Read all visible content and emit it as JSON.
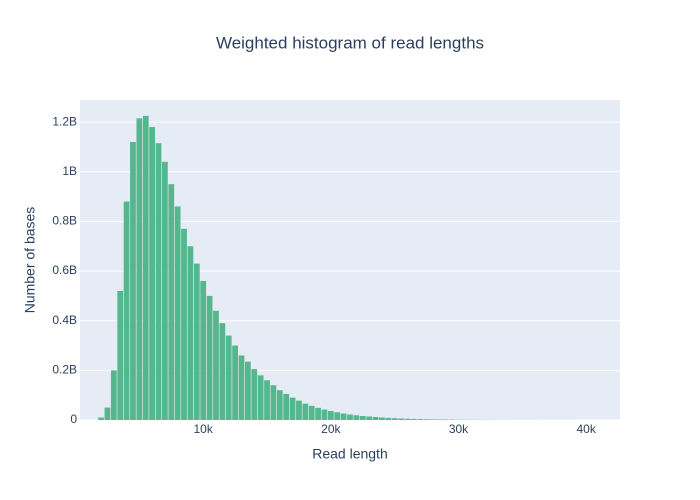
{
  "chart_data": {
    "type": "histogram",
    "title": "Weighted histogram of read lengths",
    "x_label": "Read length",
    "y_label": "Number of bases",
    "color": "#54b78e",
    "bins": [
      1750,
      2250,
      2750,
      3250,
      3750,
      4250,
      4750,
      5250,
      5750,
      6250,
      6750,
      7250,
      7750,
      8250,
      8750,
      9250,
      9750,
      10250,
      10750,
      11250,
      11750,
      12250,
      12750,
      13250,
      13750,
      14250,
      14750,
      15250,
      15750,
      16250,
      16750,
      17250,
      17750,
      18250,
      18750,
      19250,
      19750,
      20250,
      20750,
      21250,
      21750,
      22250,
      22750,
      23250,
      23750,
      24250,
      24750,
      25250,
      25750,
      26250,
      26750,
      27250,
      27750,
      28250,
      28750,
      29250,
      29750,
      30250,
      30750,
      31250,
      31750,
      32250,
      32750,
      33250,
      33750,
      34250,
      34750,
      35250,
      35750,
      36250,
      36750,
      37250,
      37750,
      38250,
      38750,
      39250,
      39750,
      40250,
      40750,
      41250,
      41750
    ],
    "values": [
      10000000,
      50000000,
      200000000,
      520000000,
      880000000,
      1120000000,
      1215000000,
      1225000000,
      1180000000,
      1115000000,
      1040000000,
      950000000,
      860000000,
      770000000,
      700000000,
      630000000,
      560000000,
      500000000,
      440000000,
      390000000,
      340000000,
      300000000,
      260000000,
      235000000,
      205000000,
      180000000,
      160000000,
      140000000,
      120000000,
      105000000,
      90000000,
      78000000,
      66000000,
      57000000,
      49000000,
      42000000,
      36000000,
      31000000,
      26000000,
      22000000,
      19000000,
      16000000,
      14000000,
      12000000,
      10000000,
      8500000,
      7200000,
      6000000,
      5000000,
      4200000,
      3500000,
      3000000,
      2500000,
      2100000,
      1800000,
      1500000,
      1300000,
      1100000,
      900000,
      800000,
      650000,
      550000,
      460000,
      390000,
      330000,
      280000,
      240000,
      200000,
      170000,
      140000,
      120000,
      100000,
      85000,
      70000,
      60000,
      50000,
      42000,
      35000,
      30000,
      25000
    ],
    "xlim": [
      350,
      42650
    ],
    "ylim": [
      0,
      1289000000
    ],
    "xticks": [
      {
        "value": 10000,
        "label": "10k"
      },
      {
        "value": 20000,
        "label": "20k"
      },
      {
        "value": 30000,
        "label": "30k"
      },
      {
        "value": 40000,
        "label": "40k"
      }
    ],
    "yticks": [
      0,
      {
        "value": 200000000,
        "label": "0.2B"
      },
      {
        "value": 400000000,
        "label": "0.4B"
      },
      {
        "value": 600000000,
        "label": "0.6B"
      },
      {
        "value": 800000000,
        "label": "0.8B"
      },
      {
        "value": 1000000000,
        "label": "1B"
      },
      {
        "value": 1200000000,
        "label": "1.2B"
      }
    ],
    "grid": true
  }
}
